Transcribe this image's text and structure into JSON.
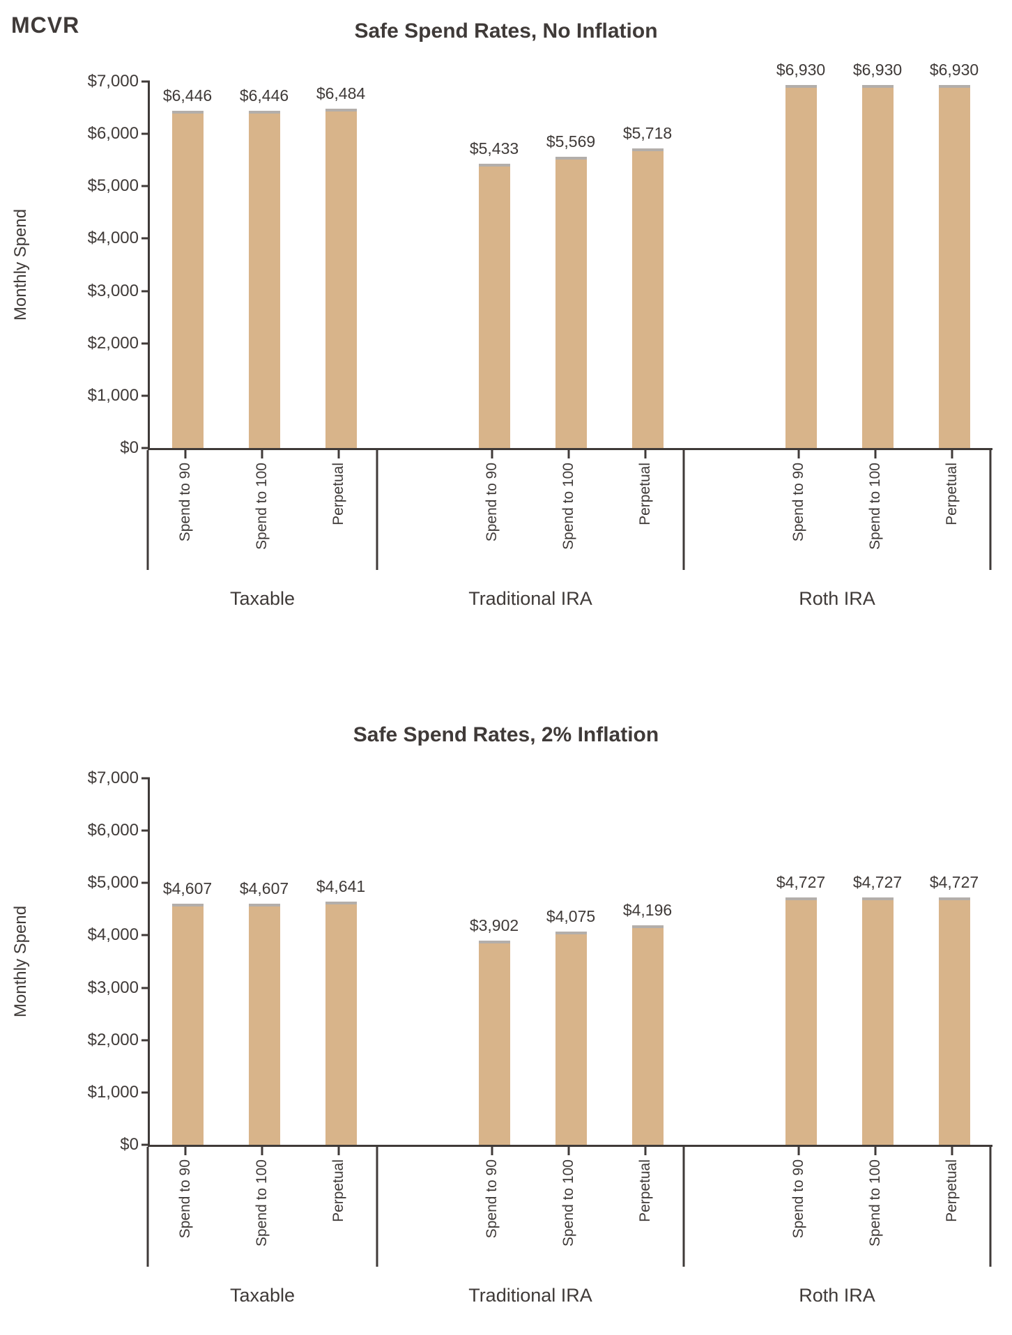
{
  "logo": "MCVR",
  "colors": {
    "bar": "#d8b48a",
    "bar_cap": "#b3aeaa",
    "text": "#3f3a38",
    "background": "#ffffff"
  },
  "chart_data": [
    {
      "type": "bar",
      "title": "Safe Spend Rates, No Inflation",
      "ylabel": "Monthly Spend",
      "xlabel": "",
      "ylim": [
        0,
        7000
      ],
      "grid": false,
      "legend": "none",
      "y_ticks": [
        "$7,000",
        "$6,000",
        "$5,000",
        "$4,000",
        "$3,000",
        "$2,000",
        "$1,000",
        "$0"
      ],
      "categories": [
        "Taxable",
        "Traditional IRA",
        "Roth IRA"
      ],
      "bar_labels": [
        "Spend to 90",
        "Spend to 100",
        "Perpetual"
      ],
      "series": [
        {
          "group": "Taxable",
          "values": [
            6446,
            6446,
            6484
          ],
          "value_labels": [
            "$6,446",
            "$6,446",
            "$6,484"
          ]
        },
        {
          "group": "Traditional IRA",
          "values": [
            5433,
            5569,
            5718
          ],
          "value_labels": [
            "$5,433",
            "$5,569",
            "$5,718"
          ]
        },
        {
          "group": "Roth IRA",
          "values": [
            6930,
            6930,
            6930
          ],
          "value_labels": [
            "$6,930",
            "$6,930",
            "$6,930"
          ]
        }
      ]
    },
    {
      "type": "bar",
      "title": "Safe Spend Rates, 2% Inflation",
      "ylabel": "Monthly Spend",
      "xlabel": "",
      "ylim": [
        0,
        7000
      ],
      "grid": false,
      "legend": "none",
      "y_ticks": [
        "$7,000",
        "$6,000",
        "$5,000",
        "$4,000",
        "$3,000",
        "$2,000",
        "$1,000",
        "$0"
      ],
      "categories": [
        "Taxable",
        "Traditional IRA",
        "Roth IRA"
      ],
      "bar_labels": [
        "Spend to 90",
        "Spend to 100",
        "Perpetual"
      ],
      "series": [
        {
          "group": "Taxable",
          "values": [
            4607,
            4607,
            4641
          ],
          "value_labels": [
            "$4,607",
            "$4,607",
            "$4,641"
          ]
        },
        {
          "group": "Traditional IRA",
          "values": [
            3902,
            4075,
            4196
          ],
          "value_labels": [
            "$3,902",
            "$4,075",
            "$4,196"
          ]
        },
        {
          "group": "Roth IRA",
          "values": [
            4727,
            4727,
            4727
          ],
          "value_labels": [
            "$4,727",
            "$4,727",
            "$4,727"
          ]
        }
      ]
    }
  ]
}
